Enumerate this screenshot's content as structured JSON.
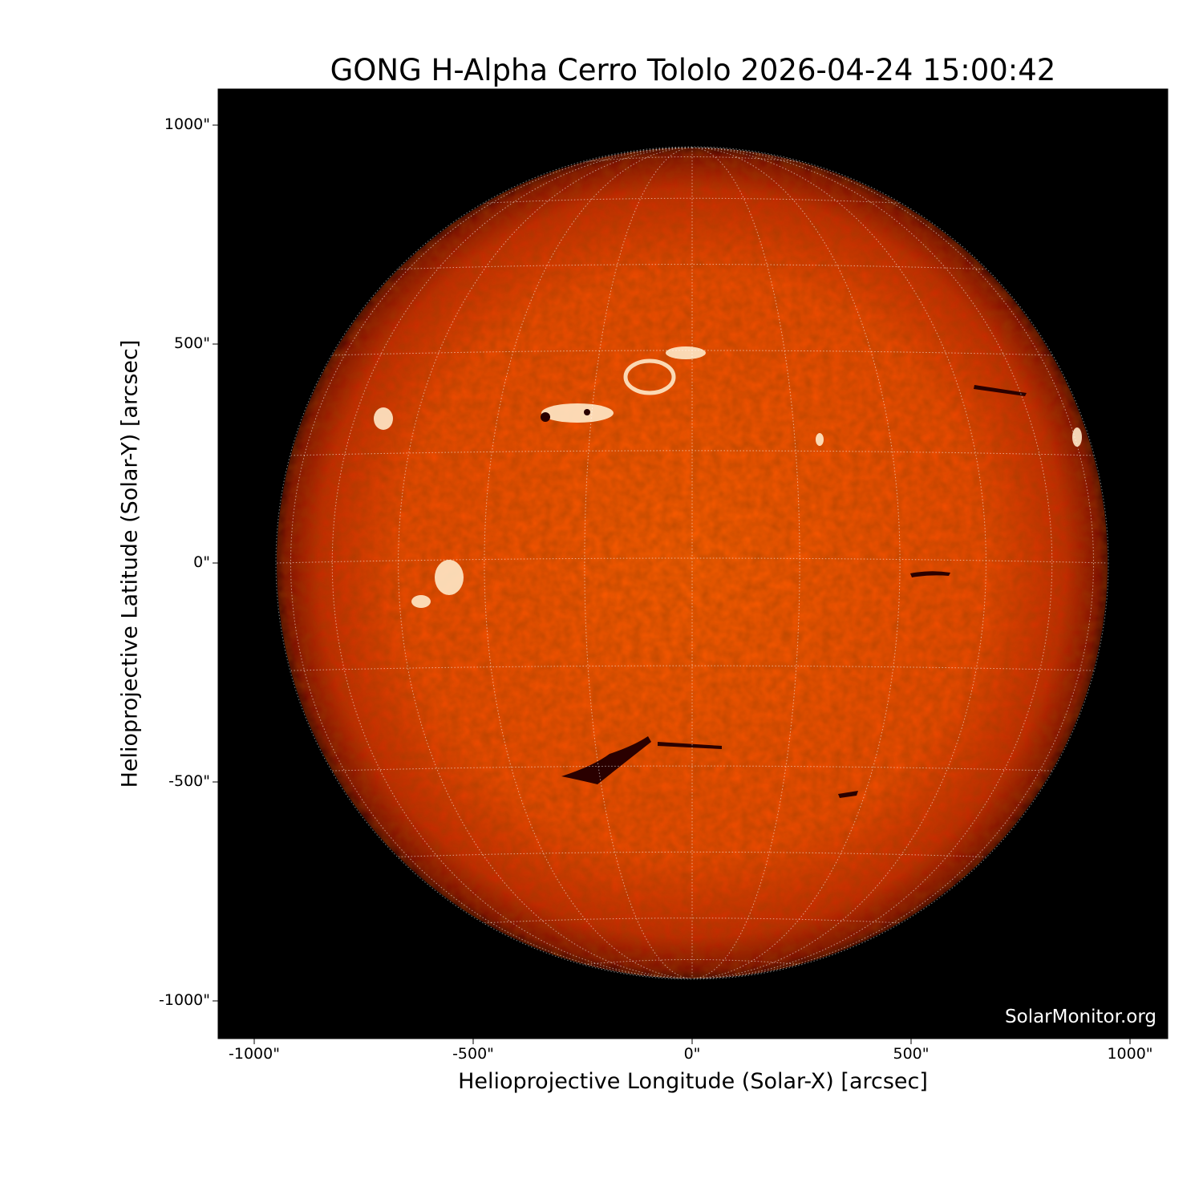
{
  "title": "GONG H-Alpha Cerro Tololo 2026-04-24 15:00:42",
  "xlabel": "Helioprojective Longitude (Solar-X) [arcsec]",
  "ylabel": "Helioprojective Latitude (Solar-Y) [arcsec]",
  "watermark": "SolarMonitor.org",
  "x_ticks": [
    {
      "value": -1000,
      "label": "-1000\""
    },
    {
      "value": -500,
      "label": "-500\""
    },
    {
      "value": 0,
      "label": "0\""
    },
    {
      "value": 500,
      "label": "500\""
    },
    {
      "value": 1000,
      "label": "1000\""
    }
  ],
  "y_ticks": [
    {
      "value": 1000,
      "label": "1000\""
    },
    {
      "value": 500,
      "label": "500\""
    },
    {
      "value": 0,
      "label": "0\""
    },
    {
      "value": -500,
      "label": "-500\""
    },
    {
      "value": -1000,
      "label": "-1000\""
    }
  ],
  "axis_range_arcsec": {
    "x": [
      -1085,
      1085
    ],
    "y": [
      -1085,
      1085
    ]
  },
  "solar_radius_arcsec": 949,
  "grid": true,
  "colors": {
    "disk_center": "#ff5a00",
    "disk_limb": "#7a0c00",
    "background": "#000000",
    "plage": "#fff2d8",
    "filament": "#3a0000"
  }
}
